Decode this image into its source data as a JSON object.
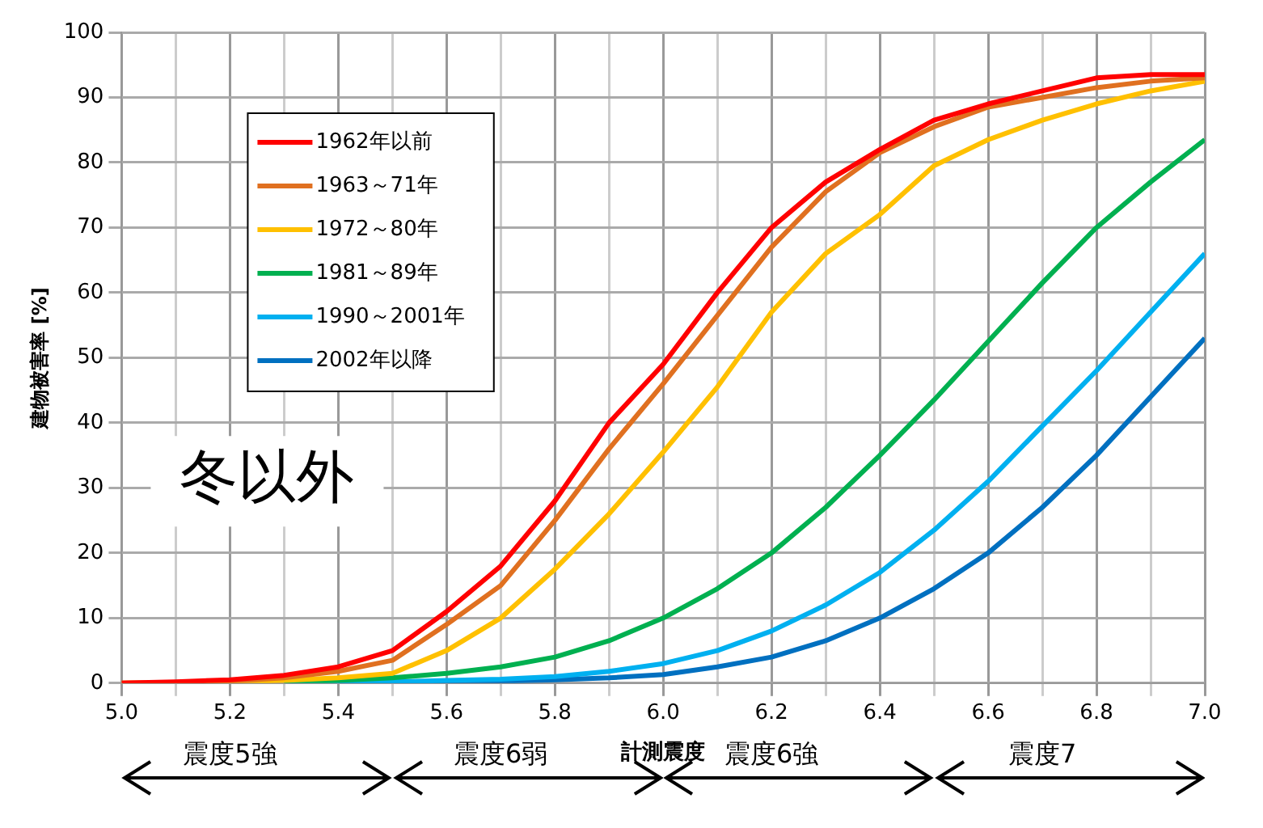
{
  "chart_data": {
    "type": "line",
    "xlabel": "計測震度",
    "ylabel": "建物被害率 [%]",
    "annotations": [
      "冬以外",
      "震度5強",
      "震度6弱",
      "震度6強",
      "震度7"
    ],
    "x": [
      5.0,
      5.1,
      5.2,
      5.3,
      5.4,
      5.5,
      5.6,
      5.7,
      5.8,
      5.9,
      6.0,
      6.1,
      6.2,
      6.3,
      6.4,
      6.5,
      6.6,
      6.7,
      6.8,
      6.9,
      7.0
    ],
    "series": [
      {
        "name": "1962年以前",
        "color": "#ff0000",
        "values": [
          0,
          0.2,
          0.5,
          1.2,
          2.5,
          5,
          11,
          18,
          28,
          40,
          49,
          60,
          70,
          77,
          82,
          86.5,
          89,
          91,
          93,
          93.5,
          93.5
        ]
      },
      {
        "name": "1963～71年",
        "color": "#e07020",
        "values": [
          0,
          0.1,
          0.3,
          0.8,
          1.8,
          3.5,
          9,
          15,
          25,
          36,
          46,
          56.5,
          67,
          75.5,
          81.5,
          85.5,
          88.5,
          90,
          91.5,
          92.5,
          93
        ]
      },
      {
        "name": "1972～80年",
        "color": "#ffc000",
        "values": [
          0,
          0,
          0.2,
          0.4,
          0.8,
          1.5,
          5,
          10,
          17.5,
          26,
          35.5,
          45.5,
          57,
          66,
          72,
          79.5,
          83.5,
          86.5,
          89,
          91,
          92.5
        ]
      },
      {
        "name": "1981～89年",
        "color": "#00b050",
        "values": [
          null,
          null,
          null,
          0.2,
          0.4,
          0.8,
          1.5,
          2.5,
          4,
          6.5,
          10,
          14.5,
          20,
          27,
          35,
          43.5,
          52.5,
          61.5,
          70,
          77,
          83.5
        ]
      },
      {
        "name": "1990～2001年",
        "color": "#00b0f0",
        "values": [
          null,
          null,
          null,
          0,
          0.1,
          0.2,
          0.4,
          0.6,
          1,
          1.8,
          3,
          5,
          8,
          12,
          17,
          23.5,
          31,
          39.5,
          48,
          57,
          66
        ]
      },
      {
        "name": "2002年以降",
        "color": "#0070c0",
        "values": [
          null,
          null,
          null,
          null,
          0,
          0.1,
          0.2,
          0.3,
          0.5,
          0.8,
          1.3,
          2.5,
          4,
          6.5,
          10,
          14.5,
          20,
          27,
          35,
          44,
          53
        ]
      }
    ],
    "xlim": [
      5.0,
      7.0
    ],
    "xticks": [
      {
        "value": 5.0,
        "label": "5.0"
      },
      {
        "value": 5.1,
        "label": null
      },
      {
        "value": 5.2,
        "label": "5.2"
      },
      {
        "value": 5.3,
        "label": null
      },
      {
        "value": 5.4,
        "label": "5.4"
      },
      {
        "value": 5.5,
        "label": null
      },
      {
        "value": 5.6,
        "label": "5.6"
      },
      {
        "value": 5.7,
        "label": null
      },
      {
        "value": 5.8,
        "label": "5.8"
      },
      {
        "value": 5.9,
        "label": null
      },
      {
        "value": 6.0,
        "label": "6.0"
      },
      {
        "value": 6.1,
        "label": null
      },
      {
        "value": 6.2,
        "label": "6.2"
      },
      {
        "value": 6.3,
        "label": null
      },
      {
        "value": 6.4,
        "label": "6.4"
      },
      {
        "value": 6.5,
        "label": null
      },
      {
        "value": 6.6,
        "label": "6.6"
      },
      {
        "value": 6.7,
        "label": null
      },
      {
        "value": 6.8,
        "label": "6.8"
      },
      {
        "value": 6.9,
        "label": null
      },
      {
        "value": 7.0,
        "label": "7.0"
      }
    ],
    "ylim": [
      0,
      100
    ],
    "yticks": [
      0,
      10,
      20,
      30,
      40,
      50,
      60,
      70,
      80,
      90,
      100
    ],
    "grid": true,
    "legend": "top left",
    "marker": "none",
    "line_style": "solid"
  }
}
